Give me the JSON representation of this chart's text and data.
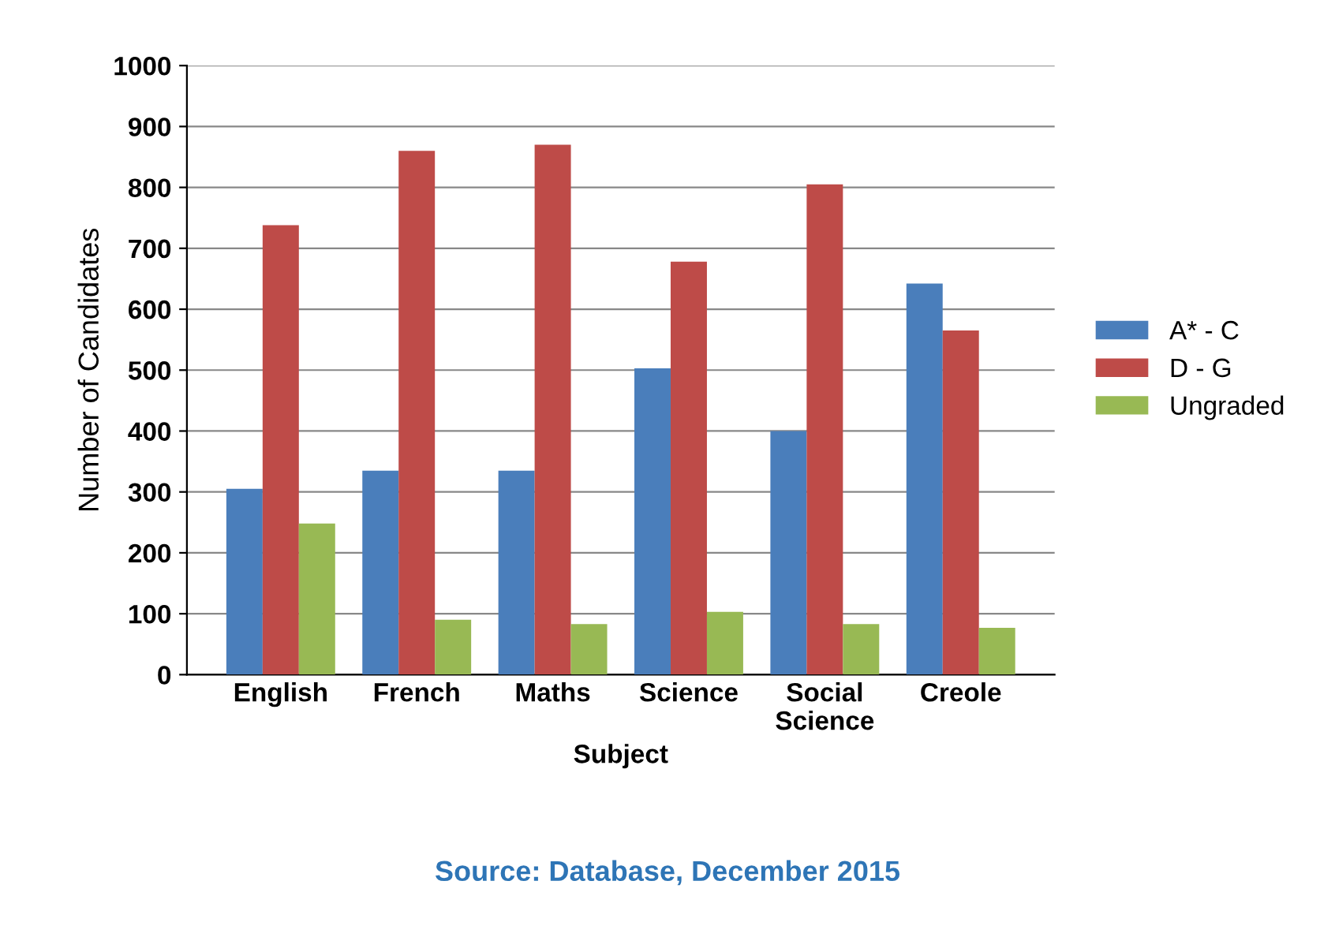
{
  "chart_data": {
    "type": "bar",
    "xlabel": "Subject",
    "ylabel": "Number of Candidates",
    "categories": [
      "English",
      "French",
      "Maths",
      "Science",
      "Social\nScience",
      "Creole"
    ],
    "series": [
      {
        "name": "A* - C",
        "color": "#4a7ebb",
        "values": [
          305,
          335,
          335,
          503,
          400,
          642
        ]
      },
      {
        "name": "D - G",
        "color": "#be4b48",
        "values": [
          738,
          860,
          870,
          678,
          805,
          565
        ]
      },
      {
        "name": "Ungraded",
        "color": "#98b954",
        "values": [
          248,
          90,
          83,
          103,
          83,
          77
        ]
      }
    ],
    "ylim": [
      0,
      1000
    ],
    "yticks": [
      0,
      100,
      200,
      300,
      400,
      500,
      600,
      700,
      800,
      900,
      1000
    ],
    "grid": "y",
    "legend": "right",
    "annotations": [
      "Source: Database, December 2015"
    ]
  }
}
